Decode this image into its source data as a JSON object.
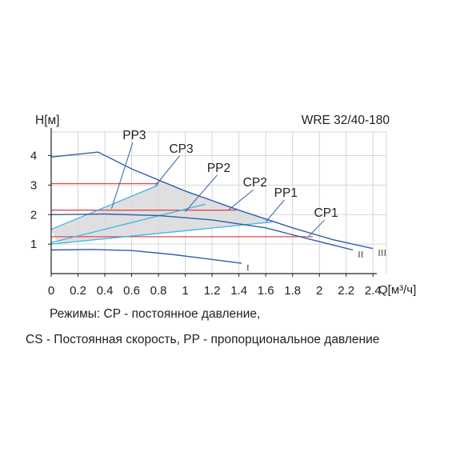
{
  "chart_data": {
    "type": "line",
    "title": "WRE 32/40-180",
    "ylabel": "H[м]",
    "xlabel": "Q[м³/ч]",
    "xlim": [
      0,
      2.5
    ],
    "ylim": [
      0,
      4.8
    ],
    "x_ticks": [
      "0",
      "0.2",
      "0.4",
      "0.6",
      "0.8",
      "1",
      "1.2",
      "1.4",
      "1.6",
      "1.8",
      "2",
      "2.2",
      "2.4"
    ],
    "y_ticks": [
      "1",
      "2",
      "3",
      "4"
    ],
    "colors": {
      "speed_curve": "#2f5fa8",
      "proportional_pressure": "#3db4e6",
      "constant_pressure": "#e04a4a",
      "area_fill": "#d9d9dd",
      "axis": "#222222",
      "grid": "#d6d6d6"
    },
    "speed_curves": [
      {
        "name": "III",
        "points": [
          [
            0,
            3.95
          ],
          [
            0.35,
            4.12
          ],
          [
            0.6,
            3.55
          ],
          [
            1.0,
            2.8
          ],
          [
            1.4,
            2.15
          ],
          [
            1.8,
            1.55
          ],
          [
            2.1,
            1.15
          ],
          [
            2.4,
            0.85
          ]
        ]
      },
      {
        "name": "II",
        "points": [
          [
            0,
            2.0
          ],
          [
            0.4,
            2.02
          ],
          [
            0.8,
            1.97
          ],
          [
            1.2,
            1.82
          ],
          [
            1.6,
            1.55
          ],
          [
            1.9,
            1.2
          ],
          [
            2.1,
            0.97
          ],
          [
            2.25,
            0.8
          ]
        ]
      },
      {
        "name": "I",
        "points": [
          [
            0,
            0.8
          ],
          [
            0.3,
            0.82
          ],
          [
            0.6,
            0.78
          ],
          [
            0.9,
            0.65
          ],
          [
            1.2,
            0.48
          ],
          [
            1.42,
            0.35
          ]
        ]
      }
    ],
    "proportional_pressure": [
      {
        "name": "PP3",
        "points": [
          [
            0,
            1.5
          ],
          [
            0.8,
            3.0
          ]
        ]
      },
      {
        "name": "PP2",
        "points": [
          [
            0,
            1.05
          ],
          [
            1.15,
            2.35
          ]
        ]
      },
      {
        "name": "PP1",
        "points": [
          [
            0,
            1.0
          ],
          [
            1.65,
            1.75
          ]
        ]
      }
    ],
    "constant_pressure": [
      {
        "name": "CP3",
        "points": [
          [
            0,
            3.05
          ],
          [
            0.8,
            3.05
          ]
        ]
      },
      {
        "name": "CP2",
        "points": [
          [
            0,
            2.15
          ],
          [
            1.38,
            2.15
          ]
        ]
      },
      {
        "name": "CP1",
        "points": [
          [
            0,
            1.25
          ],
          [
            1.95,
            1.25
          ]
        ]
      }
    ],
    "labels": [
      {
        "text": "PP3",
        "x": 0.62,
        "y": 4.55,
        "target": [
          0.45,
          2.2
        ]
      },
      {
        "text": "CP3",
        "x": 0.97,
        "y": 4.1,
        "target": [
          0.78,
          3.0
        ]
      },
      {
        "text": "PP2",
        "x": 1.25,
        "y": 3.45,
        "target": [
          1.0,
          2.1
        ]
      },
      {
        "text": "CP2",
        "x": 1.52,
        "y": 2.95,
        "target": [
          1.32,
          2.15
        ]
      },
      {
        "text": "PP1",
        "x": 1.75,
        "y": 2.6,
        "target": [
          1.6,
          1.75
        ]
      },
      {
        "text": "CP1",
        "x": 2.05,
        "y": 1.92,
        "target": [
          1.92,
          1.27
        ]
      }
    ]
  },
  "caption": {
    "line1": "Режимы: CP - постоянное давление,",
    "line2": "CS - Постоянная скорость, PP - пропорциональное давление"
  }
}
